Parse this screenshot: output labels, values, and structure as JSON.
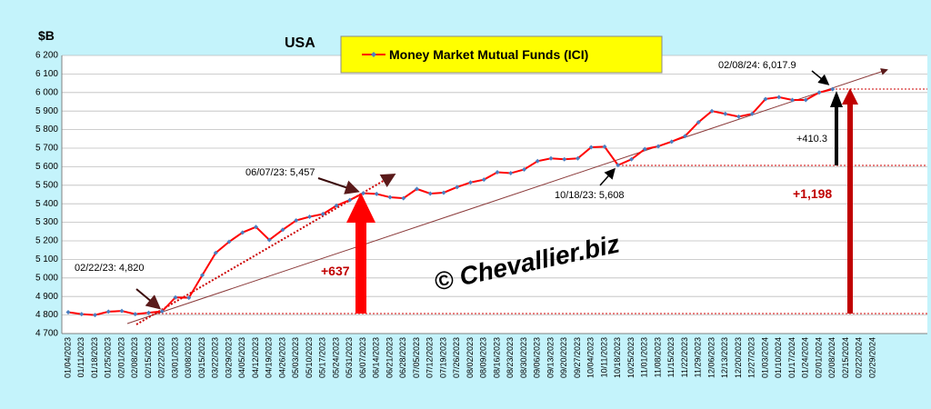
{
  "chart_data": {
    "type": "line",
    "title": "USA",
    "ylabel": "$B",
    "categories": [
      "01/04/2023",
      "01/11/2023",
      "01/18/2023",
      "01/25/2023",
      "02/01/2023",
      "02/08/2023",
      "02/15/2023",
      "02/22/2023",
      "03/01/2023",
      "03/08/2023",
      "03/15/2023",
      "03/22/2023",
      "03/29/2023",
      "04/05/2023",
      "04/12/2023",
      "04/19/2023",
      "04/26/2023",
      "05/03/2023",
      "05/10/2023",
      "05/17/2023",
      "05/24/2023",
      "05/31/2023",
      "06/07/2023",
      "06/14/2023",
      "06/21/2023",
      "06/28/2023",
      "07/05/2023",
      "07/12/2023",
      "07/19/2023",
      "07/26/2023",
      "08/02/2023",
      "08/09/2023",
      "08/16/2023",
      "08/23/2023",
      "08/30/2023",
      "09/06/2023",
      "09/13/2023",
      "09/20/2023",
      "09/27/2023",
      "10/04/2023",
      "10/11/2023",
      "10/18/2023",
      "10/25/2023",
      "11/01/2023",
      "11/08/2023",
      "11/15/2023",
      "11/22/2023",
      "11/29/2023",
      "12/06/2023",
      "12/13/2023",
      "12/20/2023",
      "12/27/2023",
      "01/03/2024",
      "01/10/2024",
      "01/17/2024",
      "01/24/2024",
      "02/01/2024",
      "02/08/2024",
      "02/15/2024",
      "02/22/2024",
      "02/29/2024"
    ],
    "series": [
      {
        "name": "Money Market Mutual Funds (ICI)",
        "color": "#ff0000",
        "marker_color": "#4a7fc1",
        "values": [
          4815,
          4805,
          4800,
          4818,
          4822,
          4805,
          4812,
          4820,
          4895,
          4893,
          5015,
          5135,
          5195,
          5245,
          5275,
          5205,
          5260,
          5310,
          5330,
          5345,
          5390,
          5420,
          5457,
          5453,
          5435,
          5430,
          5480,
          5455,
          5460,
          5490,
          5515,
          5530,
          5570,
          5565,
          5585,
          5630,
          5645,
          5640,
          5645,
          5705,
          5708,
          5608,
          5640,
          5695,
          5710,
          5735,
          5765,
          5840,
          5900,
          5885,
          5870,
          5885,
          5965,
          5975,
          5960,
          5960,
          6000,
          6017.9,
          null,
          null,
          null
        ]
      }
    ],
    "ylim": [
      4700,
      6200
    ],
    "yticks": [
      {
        "value": 4700,
        "label": "4 700"
      },
      {
        "value": 4800,
        "label": "4 800"
      },
      {
        "value": 4900,
        "label": "4 900"
      },
      {
        "value": 5000,
        "label": "5 000"
      },
      {
        "value": 5100,
        "label": "5 100"
      },
      {
        "value": 5200,
        "label": "5 200"
      },
      {
        "value": 5300,
        "label": "5 300"
      },
      {
        "value": 5400,
        "label": "5 400"
      },
      {
        "value": 5500,
        "label": "5 500"
      },
      {
        "value": 5600,
        "label": "5 600"
      },
      {
        "value": 5700,
        "label": "5 700"
      },
      {
        "value": 5800,
        "label": "5 800"
      },
      {
        "value": 5900,
        "label": "5 900"
      },
      {
        "value": 6000,
        "label": "6 000"
      },
      {
        "value": 6100,
        "label": "6 100"
      },
      {
        "value": 6200,
        "label": "6 200"
      }
    ],
    "grid": true,
    "annotations": [
      "02/22/23: 4,820",
      "06/07/23: 5,457",
      "10/18/23: 5,608",
      "02/08/24: 6,017.9",
      "+637",
      "+410.3",
      "+1,198",
      "© Chevallier.biz"
    ]
  }
}
